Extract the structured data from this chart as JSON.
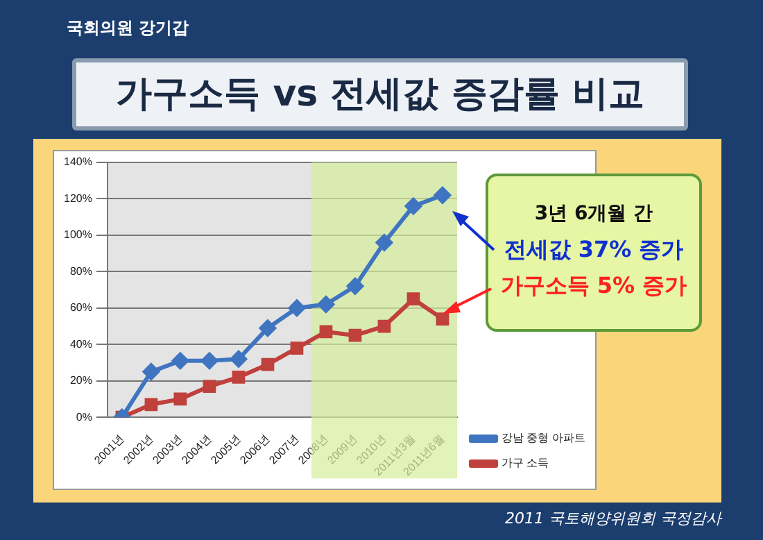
{
  "chart_data": {
    "type": "line",
    "title": "가구소득 vs 전세값 증감률 비교",
    "subtitle": "국회의원 강기갑",
    "categories": [
      "2001년",
      "2002년",
      "2003년",
      "2004년",
      "2005년",
      "2006년",
      "2007년",
      "2008년",
      "2009년",
      "2010년",
      "2011년3월",
      "2011년6월"
    ],
    "series": [
      {
        "name": "강남 중형 아파트",
        "color": "#3f75c0",
        "values": [
          0,
          25,
          31,
          31,
          32,
          49,
          60,
          62,
          72,
          96,
          116,
          122
        ]
      },
      {
        "name": "가구 소득",
        "color": "#c0403c",
        "values": [
          0,
          7,
          10,
          17,
          22,
          29,
          38,
          47,
          45,
          50,
          65,
          54
        ],
        "marker": "square"
      }
    ],
    "marker": "diamond",
    "ylim": [
      0,
      140
    ],
    "yticks": [
      {
        "value": 0,
        "label": "0%"
      },
      {
        "value": 20,
        "label": "20%"
      },
      {
        "value": 40,
        "label": "40%"
      },
      {
        "value": 60,
        "label": "60%"
      },
      {
        "value": 80,
        "label": "80%"
      },
      {
        "value": 100,
        "label": "100%"
      },
      {
        "value": 120,
        "label": "120%"
      },
      {
        "value": 140,
        "label": "140%"
      }
    ],
    "grid": "y",
    "legend": "right",
    "bands": [
      {
        "axis": "x",
        "from": "2008년",
        "to": "2011년6월",
        "color": "#d4ee9a"
      }
    ],
    "annotations": [
      "3년 6개월 간",
      "전세값 37% 증가",
      "가구소득 5% 증가",
      "2011 국토해양위원회 국정감사"
    ]
  }
}
